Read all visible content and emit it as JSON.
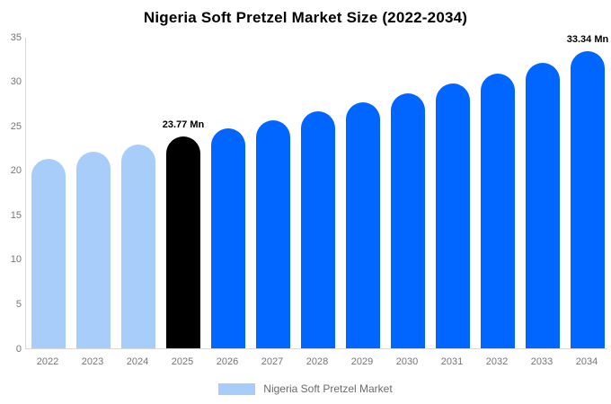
{
  "title": "Nigeria Soft Pretzel Market Size (2022-2034)",
  "legend": {
    "label": "Nigeria Soft Pretzel Market",
    "swatch_color": "#a7cdf8"
  },
  "colors": {
    "historical": "#a7cdf8",
    "base_year": "#000000",
    "forecast": "#0066ff",
    "axis_line": "#d9d9d9",
    "tick_text": "#757575",
    "data_label_text": "#000000",
    "background": "#ffffff"
  },
  "chart_data": {
    "type": "bar",
    "title": "Nigeria Soft Pretzel Market Size (2022-2034)",
    "unit": "Mn",
    "categories": [
      "2022",
      "2023",
      "2024",
      "2025",
      "2026",
      "2027",
      "2028",
      "2029",
      "2030",
      "2031",
      "2032",
      "2033",
      "2034"
    ],
    "values": [
      21.24,
      22.05,
      22.89,
      23.77,
      24.68,
      25.62,
      26.6,
      27.62,
      28.67,
      29.77,
      30.91,
      32.1,
      33.34
    ],
    "point_styles": [
      "historical",
      "historical",
      "historical",
      "base_year",
      "forecast",
      "forecast",
      "forecast",
      "forecast",
      "forecast",
      "forecast",
      "forecast",
      "forecast",
      "forecast"
    ],
    "data_labels": {
      "2025": "23.77 Mn",
      "2034": "33.34 Mn"
    },
    "xlabel": "",
    "ylabel": "",
    "ylim": [
      0,
      35
    ],
    "yticks": [
      0,
      5,
      10,
      15,
      20,
      25,
      30,
      35
    ],
    "grid": false,
    "legend_position": "bottom",
    "legend_entries": [
      "Nigeria Soft Pretzel Market"
    ]
  }
}
